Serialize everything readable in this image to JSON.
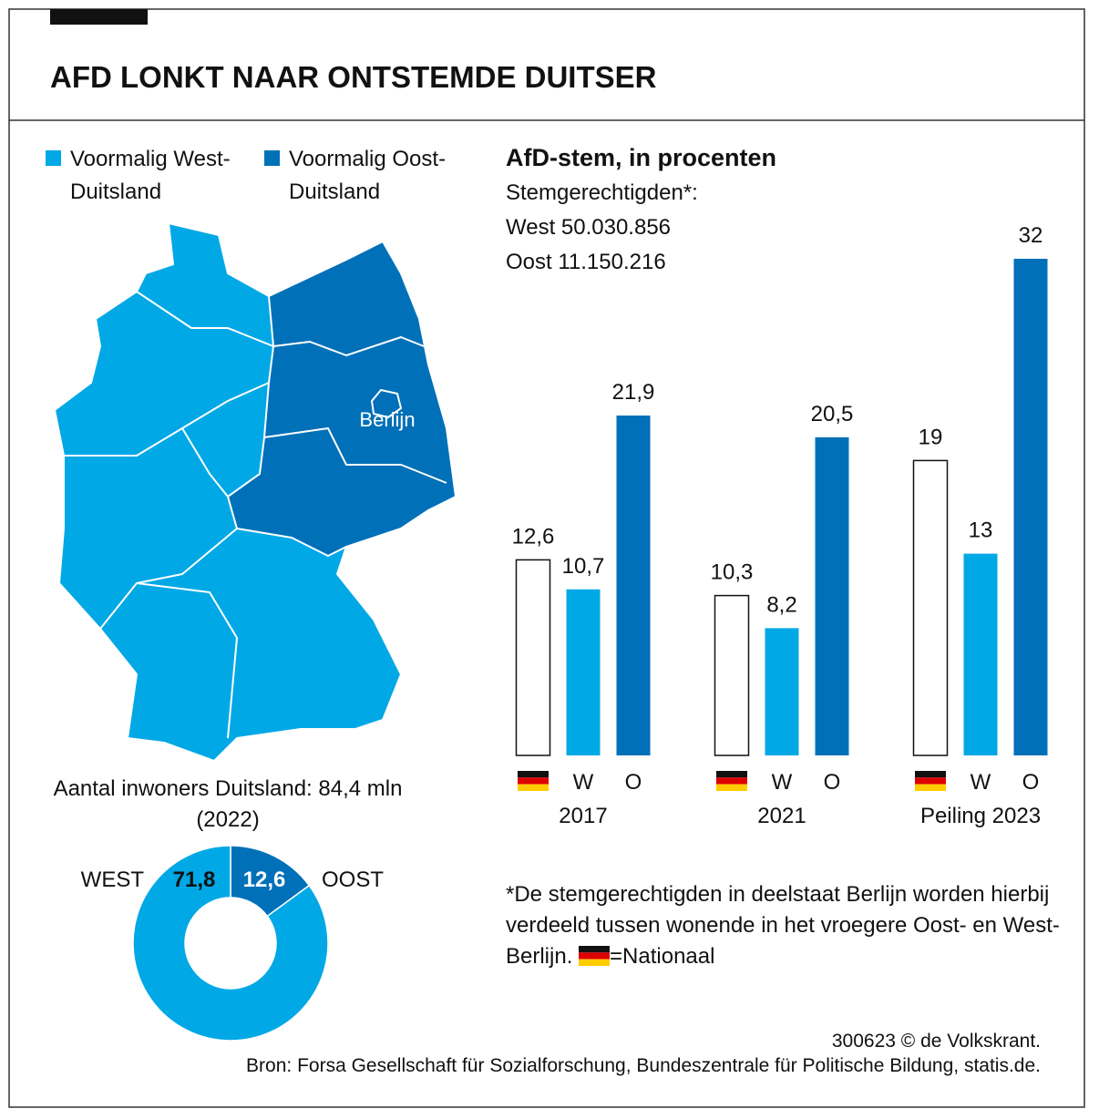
{
  "header": {
    "title": "AFD LONKT NAAR ONTSTEMDE DUITSER"
  },
  "map": {
    "legend": [
      {
        "label": "Voormalig West-Duitsland",
        "color": "#00a8e6"
      },
      {
        "label": "Voormalig Oost-Duitsland",
        "color": "#0070b8"
      }
    ],
    "city": "Berlijn"
  },
  "chart_data": [
    {
      "type": "bar",
      "title": "AfD-stem, in procenten",
      "subtitle": [
        "Stemgerechtigden*:",
        "West 50.030.856",
        "Oost 11.150.216"
      ],
      "categories": [
        "2017",
        "2021",
        "Peiling 2023"
      ],
      "series": [
        {
          "name": "=Nationaal",
          "color": "#ffffff",
          "values": [
            12.6,
            10.3,
            19
          ],
          "value_labels": [
            "12,6",
            "10,3",
            "19"
          ]
        },
        {
          "name": "W",
          "color": "#00a8e6",
          "values": [
            10.7,
            8.2,
            13
          ],
          "value_labels": [
            "10,7",
            "8,2",
            "13"
          ]
        },
        {
          "name": "O",
          "color": "#0070b8",
          "values": [
            21.9,
            20.5,
            32
          ],
          "value_labels": [
            "21,9",
            "20,5",
            "32"
          ]
        }
      ],
      "footnote": "*De stemgerechtigden in deelstaat Berlijn worden hierbij verdeeld tussen wonende in het vroegere Oost- en West-Berlijn."
    },
    {
      "type": "donut",
      "title": "Aantal inwoners Duitsland: 84,4 mln",
      "subtitle": "(2022)",
      "categories": [
        "WEST",
        "OOST"
      ],
      "values": [
        71.8,
        12.6
      ],
      "value_labels": [
        "71,8",
        "12,6"
      ],
      "colors": [
        "#00a8e6",
        "#0070b8"
      ]
    }
  ],
  "footer": {
    "credit": "300623 © de Volkskrant.",
    "source": "Bron: Forsa Gesellschaft für Sozialforschung, Bundeszentrale für Politische Bildung, statis.de."
  }
}
